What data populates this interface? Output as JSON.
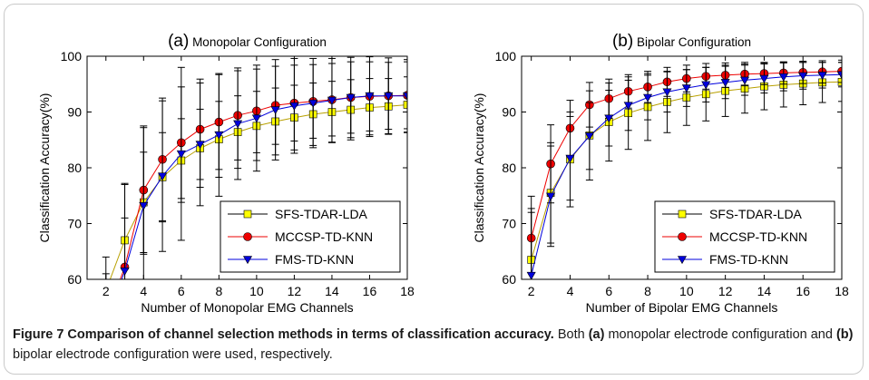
{
  "chart_data": [
    {
      "type": "line",
      "panel_letter": "(a)",
      "title": "Monopolar Configuration",
      "xlabel": "Number of Monopolar EMG Channels",
      "ylabel": "Classification Accuracy(%)",
      "xlim": [
        1,
        18
      ],
      "ylim": [
        60,
        100
      ],
      "x_ticks": [
        "2",
        "4",
        "6",
        "8",
        "10",
        "12",
        "14",
        "16",
        "18"
      ],
      "y_ticks": [
        "60",
        "70",
        "80",
        "90",
        "100"
      ],
      "legend_position": "bottom-right",
      "x": [
        2,
        3,
        4,
        5,
        6,
        7,
        8,
        9,
        10,
        11,
        12,
        13,
        14,
        15,
        16,
        17,
        18
      ],
      "series": [
        {
          "name": "SFS-TDAR-LDA",
          "color": "#ffff00",
          "line_color": "#b8a000",
          "marker": "square",
          "values": [
            58.0,
            67.0,
            73.8,
            78.3,
            81.3,
            83.5,
            85.1,
            86.4,
            87.5,
            88.3,
            89.0,
            89.6,
            90.0,
            90.4,
            90.8,
            91.0,
            91.3
          ],
          "err": [
            6.0,
            10.0,
            9.0,
            8.0,
            7.5,
            7.0,
            6.8,
            6.5,
            6.2,
            6.0,
            5.8,
            5.6,
            5.5,
            5.4,
            5.2,
            5.0,
            5.0
          ]
        },
        {
          "name": "MCCSP-TD-KNN",
          "color": "#ee0000",
          "line_color": "#ee0000",
          "marker": "circle",
          "values": [
            53.0,
            62.2,
            76.0,
            81.5,
            84.5,
            86.9,
            88.2,
            89.4,
            90.2,
            91.2,
            91.6,
            91.9,
            92.2,
            92.6,
            92.8,
            92.9,
            93.0
          ],
          "err": [
            8.0,
            15.0,
            11.5,
            11.0,
            10.0,
            9.0,
            8.5,
            8.0,
            7.5,
            7.0,
            6.8,
            6.6,
            6.5,
            6.4,
            6.2,
            6.0,
            6.0
          ]
        },
        {
          "name": "FMS-TD-KNN",
          "color": "#0000dd",
          "line_color": "#0000dd",
          "marker": "triangle-down",
          "values": [
            52.0,
            61.5,
            73.2,
            78.5,
            82.5,
            84.2,
            85.9,
            87.9,
            88.9,
            90.4,
            91.1,
            91.6,
            92.1,
            92.6,
            92.9,
            92.9,
            92.9
          ],
          "err": [
            8.0,
            9.5,
            14.0,
            13.5,
            15.5,
            11.0,
            11.0,
            10.0,
            9.5,
            9.0,
            8.5,
            8.0,
            7.5,
            7.2,
            7.0,
            6.8,
            6.5
          ]
        }
      ]
    },
    {
      "type": "line",
      "panel_letter": "(b)",
      "title": "Bipolar Configuration",
      "xlabel": "Number of Bipolar EMG Channels",
      "ylabel": "Classification Accuracy(%)",
      "xlim": [
        1.5,
        18
      ],
      "ylim": [
        60,
        100
      ],
      "x_ticks": [
        "2",
        "4",
        "6",
        "8",
        "10",
        "12",
        "14",
        "16",
        "18"
      ],
      "y_ticks": [
        "60",
        "70",
        "80",
        "90",
        "100"
      ],
      "legend_position": "bottom-right",
      "x": [
        2,
        3,
        4,
        5,
        6,
        7,
        8,
        9,
        10,
        11,
        12,
        13,
        14,
        15,
        16,
        17,
        18
      ],
      "series": [
        {
          "name": "SFS-TDAR-LDA",
          "color": "#ffff00",
          "line_color": "#b8a000",
          "marker": "square",
          "values": [
            63.5,
            75.5,
            81.5,
            85.8,
            88.2,
            89.8,
            90.9,
            91.8,
            92.6,
            93.2,
            93.8,
            94.2,
            94.6,
            94.9,
            95.1,
            95.3,
            95.4
          ],
          "err": [
            8.5,
            9.0,
            8.5,
            8.0,
            7.0,
            6.5,
            6.0,
            5.5,
            5.0,
            4.8,
            4.6,
            4.4,
            4.2,
            4.0,
            3.8,
            3.6,
            3.5
          ]
        },
        {
          "name": "MCCSP-TD-KNN",
          "color": "#ee0000",
          "line_color": "#ee0000",
          "marker": "circle",
          "values": [
            67.4,
            80.7,
            87.1,
            91.3,
            92.4,
            93.7,
            94.5,
            95.4,
            96.0,
            96.4,
            96.6,
            96.8,
            96.9,
            97.0,
            97.1,
            97.2,
            97.3
          ],
          "err": [
            7.5,
            7.0,
            5.0,
            4.0,
            3.5,
            3.0,
            2.8,
            2.6,
            2.4,
            2.3,
            2.2,
            2.1,
            2.0,
            2.0,
            2.0,
            2.0,
            2.0
          ]
        },
        {
          "name": "FMS-TD-KNN",
          "color": "#0000dd",
          "line_color": "#0000dd",
          "marker": "triangle-down",
          "values": [
            60.7,
            74.9,
            81.7,
            85.7,
            88.9,
            91.2,
            92.6,
            93.6,
            94.3,
            94.9,
            95.3,
            95.7,
            96.0,
            96.3,
            96.5,
            96.6,
            96.7
          ],
          "err": [
            12.0,
            9.0,
            7.5,
            6.0,
            5.0,
            4.5,
            4.0,
            3.6,
            3.3,
            3.1,
            2.9,
            2.7,
            2.6,
            2.5,
            2.4,
            2.3,
            2.2
          ]
        }
      ]
    }
  ],
  "caption": {
    "label": "Figure 7 Comparison of channel selection methods in terms of classification accuracy.",
    "text1": " Both ",
    "a": "(a)",
    "text2": " monopolar electrode configuration and ",
    "b": "(b)",
    "text3": " bipolar electrode configuration were used, respectively."
  }
}
